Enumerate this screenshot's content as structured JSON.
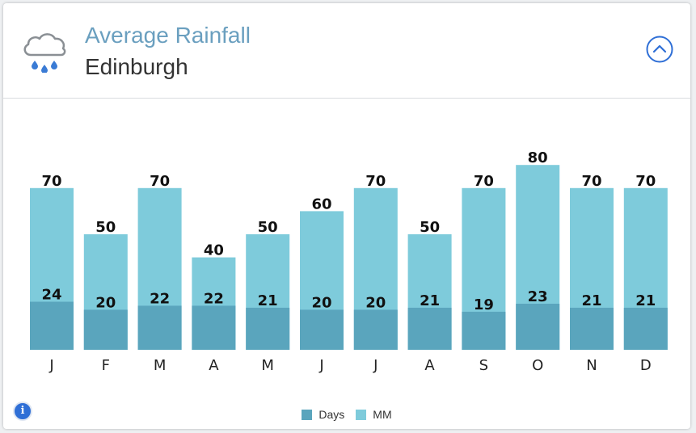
{
  "header": {
    "title": "Average Rainfall",
    "subtitle": "Edinburgh",
    "weather_icon": "rain-cloud-icon",
    "collapse_icon": "chevron-up-circle-icon"
  },
  "colors": {
    "mm": "#7ecbdb",
    "days": "#5aa5bd",
    "accent": "#2f6fd6",
    "title": "#6a9fbf"
  },
  "info_icon": "info-icon",
  "info_glyph": "i",
  "chart_data": {
    "type": "bar",
    "categories": [
      "J",
      "F",
      "M",
      "A",
      "M",
      "J",
      "J",
      "A",
      "S",
      "O",
      "N",
      "D"
    ],
    "series": [
      {
        "name": "Days",
        "values": [
          24,
          20,
          22,
          22,
          21,
          20,
          20,
          21,
          19,
          23,
          21,
          21
        ]
      },
      {
        "name": "MM",
        "values": [
          70,
          50,
          70,
          40,
          50,
          60,
          70,
          50,
          70,
          80,
          70,
          70
        ]
      }
    ],
    "legend": [
      "Days",
      "MM"
    ],
    "legend_position": "bottom-center",
    "grid": false
  }
}
